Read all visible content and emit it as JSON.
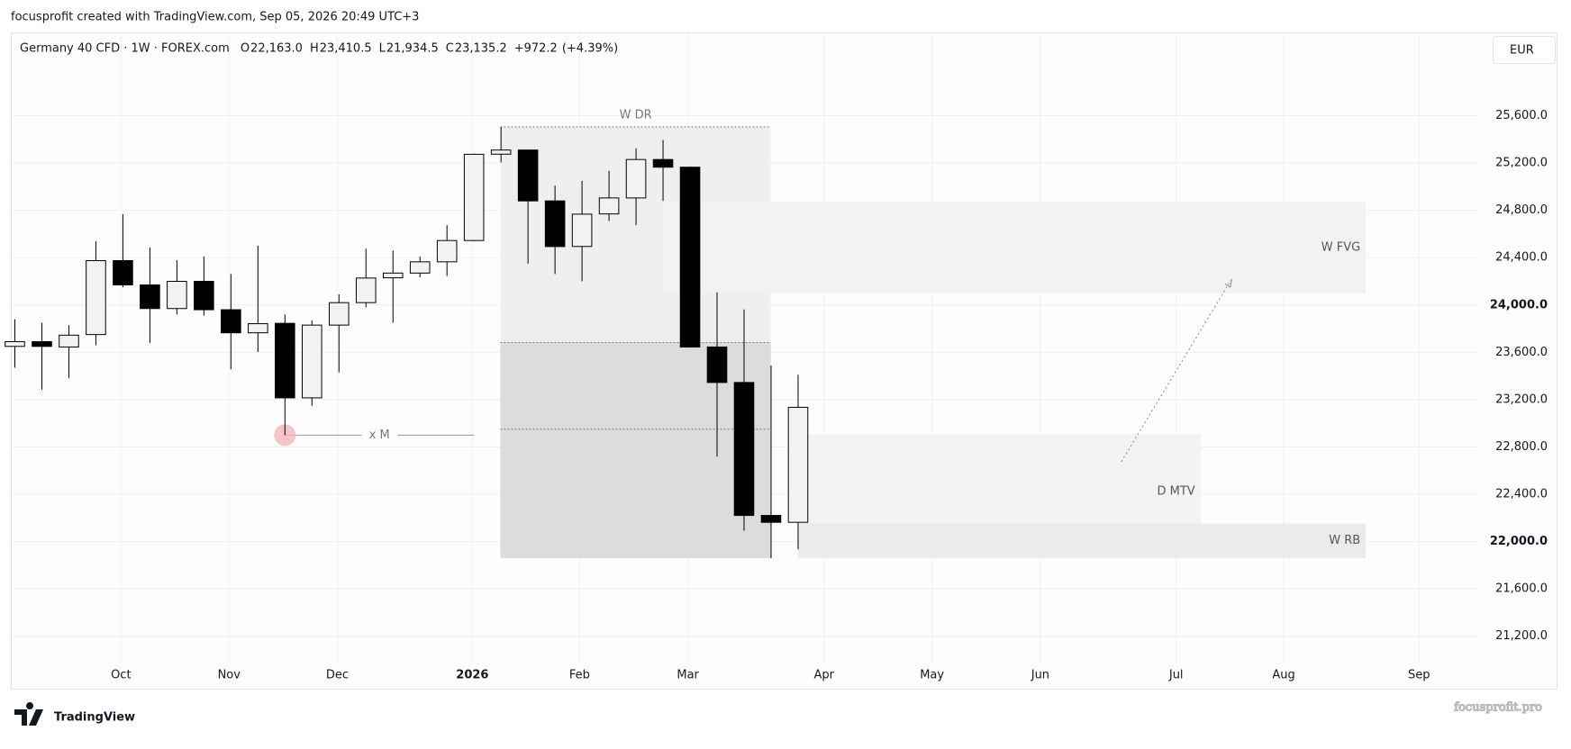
{
  "header": {
    "credit": "focusprofit created with TradingView.com, Sep 05, 2026 20:49 UTC+3",
    "currency": "EUR",
    "logo": "TradingView",
    "watermark": "focusprofit.pro"
  },
  "chart_data": {
    "type": "candlestick",
    "symbol": "Germany 40 CFD · 1W · FOREX.com",
    "legend_values": [
      {
        "key": "O",
        "value": {
          "value": 22163.0,
          "label": "22,163.0"
        }
      },
      {
        "key": "H",
        "value": {
          "value": 23410.5,
          "label": "23,410.5"
        }
      },
      {
        "key": "L",
        "value": {
          "value": 21934.5,
          "label": "21,934.5"
        }
      },
      {
        "key": "C",
        "value": {
          "value": 23135.2,
          "label": "23,135.2"
        }
      }
    ],
    "change": {
      "value": 972.2,
      "label": "+972.2"
    },
    "change_pct": {
      "value": 4.39,
      "label": "(+4.39%)"
    },
    "x": [
      0,
      1,
      2,
      3,
      4,
      5,
      6,
      7,
      8,
      9,
      10,
      11,
      12,
      13,
      14,
      15,
      16,
      17,
      18,
      19,
      20,
      21,
      22,
      23,
      24,
      25,
      26,
      27,
      28,
      29
    ],
    "open": [
      23650,
      23690,
      23645,
      23750,
      24375,
      24170,
      23970,
      24200,
      23960,
      23765,
      23845,
      23215,
      23830,
      24020,
      24230,
      24270,
      24365,
      24545,
      25275,
      25310,
      24880,
      24495,
      24770,
      24905,
      25230,
      25165,
      23645,
      23345,
      22221,
      22163.0
    ],
    "high": [
      23880,
      23850,
      23830,
      24540,
      24768,
      24485,
      24380,
      24410,
      24262,
      24502,
      23920,
      23870,
      24090,
      24476,
      24460,
      24410,
      24675,
      25280,
      25505,
      25310,
      25010,
      25050,
      25135,
      25325,
      25395,
      25170,
      24108,
      23962,
      23490,
      23410.5
    ],
    "low": [
      23470,
      23285,
      23380,
      23660,
      24150,
      23680,
      23920,
      23910,
      23456,
      23602,
      22900,
      23147,
      23430,
      23980,
      23850,
      24235,
      24245,
      24540,
      25205,
      24348,
      24262,
      24200,
      24710,
      24675,
      24880,
      23640,
      22718,
      22092,
      21861,
      21934.5
    ],
    "close": [
      23690,
      23650,
      23745,
      24375,
      24170,
      23970,
      24200,
      23960,
      23765,
      23842,
      23215,
      23830,
      24020,
      24228,
      24270,
      24365,
      24545,
      25274,
      25310,
      24880,
      24494,
      24768,
      24905,
      25230,
      25165,
      23645,
      23345,
      22221,
      22163.0,
      23135.2
    ],
    "up_color": "#f2f2f2",
    "down_color": "#000000",
    "xlim": [
      -0.15,
      54.15
    ],
    "xticks": [
      {
        "value": 3.93,
        "label": "Oct"
      },
      {
        "value": 7.93,
        "label": "Nov"
      },
      {
        "value": 11.94,
        "label": "Dec"
      },
      {
        "value": 16.94,
        "label": "2026"
      },
      {
        "value": 20.91,
        "label": "Feb"
      },
      {
        "value": 24.92,
        "label": "Mar"
      },
      {
        "value": 29.96,
        "label": "Apr"
      },
      {
        "value": 33.96,
        "label": "May"
      },
      {
        "value": 37.97,
        "label": "Jun"
      },
      {
        "value": 43.0,
        "label": "Jul"
      },
      {
        "value": 46.98,
        "label": "Aug"
      },
      {
        "value": 51.99,
        "label": "Sep"
      }
    ],
    "ylim": [
      21000,
      26000
    ],
    "yticks": [
      {
        "value": 21200,
        "label": "21,200.0"
      },
      {
        "value": 21600,
        "label": "21,600.0"
      },
      {
        "value": 22000,
        "label": "22,000.0"
      },
      {
        "value": 22400,
        "label": "22,400.0"
      },
      {
        "value": 22800,
        "label": "22,800.0"
      },
      {
        "value": 23200,
        "label": "23,200.0"
      },
      {
        "value": 23600,
        "label": "23,600.0"
      },
      {
        "value": 24000,
        "label": "24,000.0"
      },
      {
        "value": 24400,
        "label": "24,400.0"
      },
      {
        "value": 24800,
        "label": "24,800.0"
      },
      {
        "value": 25200,
        "label": "25,200.0"
      },
      {
        "value": 25600,
        "label": "25,600.0"
      }
    ],
    "grid": true,
    "zones": [
      {
        "label": "W DR",
        "x": [
          17.98,
          27.99
        ],
        "y": [
          23683,
          25505
        ],
        "color": "#efefef",
        "label_pos": "top"
      },
      {
        "x": [
          17.98,
          27.99
        ],
        "y": [
          21861,
          23683
        ],
        "color": "#dcdcdc"
      },
      {
        "label": "W FVG",
        "x": [
          23.99,
          50.02
        ],
        "y": [
          24099,
          24871
        ],
        "color": "#f2f2f2",
        "label_pos": "right"
      },
      {
        "label": "D MTV",
        "x": [
          29.1,
          43.9
        ],
        "y": [
          21938,
          22907
        ],
        "color": "#f3f3f3",
        "label_pos": "right"
      },
      {
        "label": "W RB",
        "x": [
          29.0,
          50.02
        ],
        "y": [
          21861,
          22152
        ],
        "color": "#ebebeb",
        "label_pos": "right"
      }
    ],
    "levels": [
      {
        "label": "x M",
        "x": [
          10,
          17
        ],
        "y": 22900,
        "color": "#999999",
        "marker_color": "#f4b4b8"
      },
      {
        "x": [
          17.98,
          27.99
        ],
        "y": 22950,
        "color": "#777777",
        "dashed": true
      }
    ],
    "arrow": {
      "x": [
        40.97,
        45.05
      ],
      "y": [
        22675,
        24219
      ],
      "color": "#888888"
    }
  }
}
